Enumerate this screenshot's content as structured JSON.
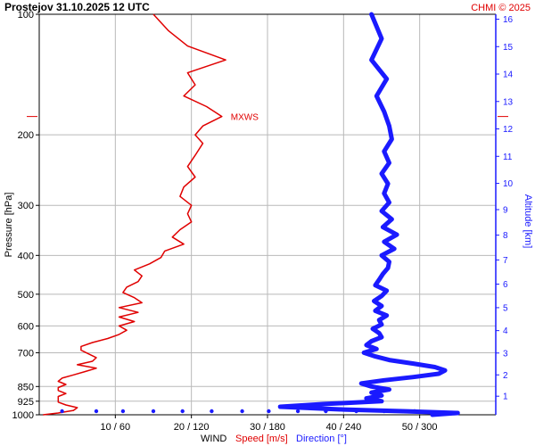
{
  "chart_data": {
    "type": "line",
    "title": "Prostejov    31.10.2025 12 UTC",
    "credit": "CHMI © 2025",
    "left_axis": {
      "label": "Pressure [hPa]",
      "scale": "log",
      "range": [
        100,
        1000
      ],
      "ticks": [
        100,
        200,
        300,
        400,
        500,
        600,
        700,
        850,
        925,
        1000
      ],
      "tick_labels": [
        "100",
        "200",
        "300",
        "400",
        "500",
        "600",
        "700",
        "850",
        "925",
        "1000"
      ],
      "grid": true
    },
    "right_axis": {
      "label": "Altitude [km]",
      "ticks": [
        1,
        2,
        3,
        4,
        5,
        6,
        7,
        8,
        9,
        10,
        11,
        12,
        13,
        14,
        15,
        16
      ],
      "tick_labels": [
        "1",
        "2",
        "3",
        "4",
        "5",
        "6",
        "7",
        "8",
        "9",
        "10",
        "11",
        "12",
        "13",
        "14",
        "15",
        "16"
      ]
    },
    "x_axis": {
      "ticks": [
        10,
        20,
        30,
        40,
        50
      ],
      "tick_labels": [
        "10 / 60",
        "20 / 120",
        "30 / 180",
        "40 / 240",
        "50 / 300"
      ],
      "speed_range": [
        0,
        60
      ],
      "direction_range": [
        0,
        360
      ],
      "legend_prefix": "WIND",
      "legend_speed": "Speed [m/s]",
      "legend_direction": "Direction [°]",
      "grid": true
    },
    "annotation": {
      "text": "MXWS",
      "pressure": 180,
      "speed": 24
    },
    "series": [
      {
        "name": "Speed [m/s]",
        "color": "#e00000",
        "pressure": [
          1000,
          990,
          975,
          960,
          945,
          930,
          915,
          900,
          885,
          870,
          855,
          840,
          825,
          810,
          795,
          780,
          765,
          750,
          735,
          720,
          705,
          690,
          675,
          660,
          645,
          630,
          615,
          600,
          585,
          570,
          555,
          540,
          525,
          510,
          495,
          480,
          465,
          450,
          435,
          420,
          405,
          390,
          375,
          360,
          345,
          330,
          315,
          300,
          285,
          270,
          255,
          240,
          225,
          210,
          200,
          190,
          180,
          170,
          160,
          150,
          140,
          130,
          120,
          110,
          100
        ],
        "speed": [
          0.5,
          2.5,
          4.5,
          5.0,
          3.5,
          2.5,
          2.5,
          2.5,
          3.5,
          2.5,
          2.5,
          3.5,
          2.5,
          3.0,
          4.5,
          6.0,
          7.5,
          5.0,
          7.0,
          7.5,
          6.5,
          5.5,
          5.5,
          7.0,
          9.0,
          10.5,
          11.5,
          10.5,
          12.5,
          10.5,
          13.0,
          10.5,
          13.5,
          12.5,
          11.0,
          11.5,
          13.0,
          13.5,
          12.5,
          14.5,
          16.0,
          16.5,
          19.0,
          17.5,
          18.5,
          20.0,
          19.5,
          20.0,
          18.5,
          19.0,
          20.5,
          19.5,
          20.5,
          21.5,
          20.5,
          21.5,
          24.0,
          22.0,
          19.0,
          20.5,
          19.5,
          24.5,
          19.5,
          17.0,
          15.0
        ]
      },
      {
        "name": "Direction [°]",
        "color": "#1a1aff",
        "pressure": [
          1000,
          990,
          980,
          970,
          955,
          940,
          925,
          910,
          895,
          880,
          865,
          850,
          835,
          820,
          805,
          790,
          775,
          760,
          745,
          730,
          715,
          700,
          685,
          670,
          655,
          640,
          625,
          610,
          595,
          580,
          565,
          550,
          535,
          520,
          505,
          490,
          475,
          460,
          445,
          430,
          415,
          400,
          385,
          370,
          355,
          340,
          325,
          310,
          295,
          280,
          265,
          250,
          235,
          220,
          205,
          190,
          175,
          160,
          145,
          130,
          115,
          100
        ],
        "direction": [
          310,
          330,
          290,
          240,
          190,
          225,
          270,
          258,
          270,
          262,
          276,
          262,
          254,
          272,
          295,
          315,
          320,
          312,
          295,
          276,
          265,
          256,
          266,
          258,
          262,
          270,
          268,
          263,
          270,
          268,
          274,
          265,
          270,
          264,
          270,
          274,
          265,
          268,
          271,
          275,
          276,
          270,
          280,
          272,
          282,
          271,
          278,
          270,
          276,
          272,
          275,
          270,
          276,
          272,
          278,
          276,
          272,
          266,
          274,
          262,
          270,
          262
        ]
      }
    ],
    "scatter_direction_near_surface": {
      "color": "#1a1aff",
      "pressure": [
        1000,
        1000,
        1000,
        1000,
        1000,
        1000,
        1000,
        1000,
        1000,
        1000,
        1000,
        1000,
        1000
      ],
      "direction": [
        18,
        45,
        66,
        90,
        113,
        136,
        160,
        181,
        204,
        226,
        250,
        272,
        296
      ]
    }
  }
}
